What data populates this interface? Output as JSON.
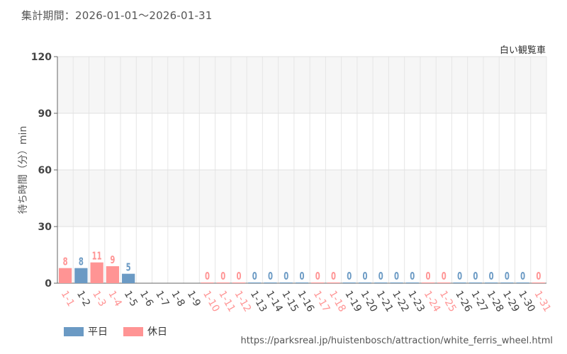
{
  "period_label": "集計期間：2026-01-01～2026-01-31",
  "source_url": "https://parksreal.jp/huistenbosch/attraction/white_ferris_wheel.html",
  "colors": {
    "weekday": "#6b9ac4",
    "holiday": "#ff9494"
  },
  "chart_data": {
    "type": "bar",
    "subject": "白い観覧車",
    "ylabel": "待ち時間（分）min",
    "ylim": [
      0,
      120
    ],
    "yticks": [
      0,
      30,
      60,
      90,
      120
    ],
    "grid": true,
    "legend_position": "bottom-left",
    "categories": [
      "1-1",
      "1-2",
      "1-3",
      "1-4",
      "1-5",
      "1-6",
      "1-7",
      "1-8",
      "1-9",
      "1-10",
      "1-11",
      "1-12",
      "1-13",
      "1-14",
      "1-15",
      "1-16",
      "1-17",
      "1-18",
      "1-19",
      "1-20",
      "1-21",
      "1-22",
      "1-23",
      "1-24",
      "1-25",
      "1-26",
      "1-27",
      "1-28",
      "1-29",
      "1-30",
      "1-31"
    ],
    "values": [
      8,
      8,
      11,
      9,
      5,
      null,
      null,
      null,
      null,
      0,
      0,
      0,
      0,
      0,
      0,
      0,
      0,
      0,
      0,
      0,
      0,
      0,
      0,
      0,
      0,
      0,
      0,
      0,
      0,
      0,
      0
    ],
    "day_type": [
      "休日",
      "平日",
      "休日",
      "休日",
      "平日",
      "平日",
      "平日",
      "平日",
      "平日",
      "休日",
      "休日",
      "休日",
      "平日",
      "平日",
      "平日",
      "平日",
      "休日",
      "休日",
      "平日",
      "平日",
      "平日",
      "平日",
      "平日",
      "休日",
      "休日",
      "平日",
      "平日",
      "平日",
      "平日",
      "平日",
      "休日"
    ],
    "series": [
      {
        "name": "平日",
        "color": "#6b9ac4"
      },
      {
        "name": "休日",
        "color": "#ff9494"
      }
    ]
  }
}
